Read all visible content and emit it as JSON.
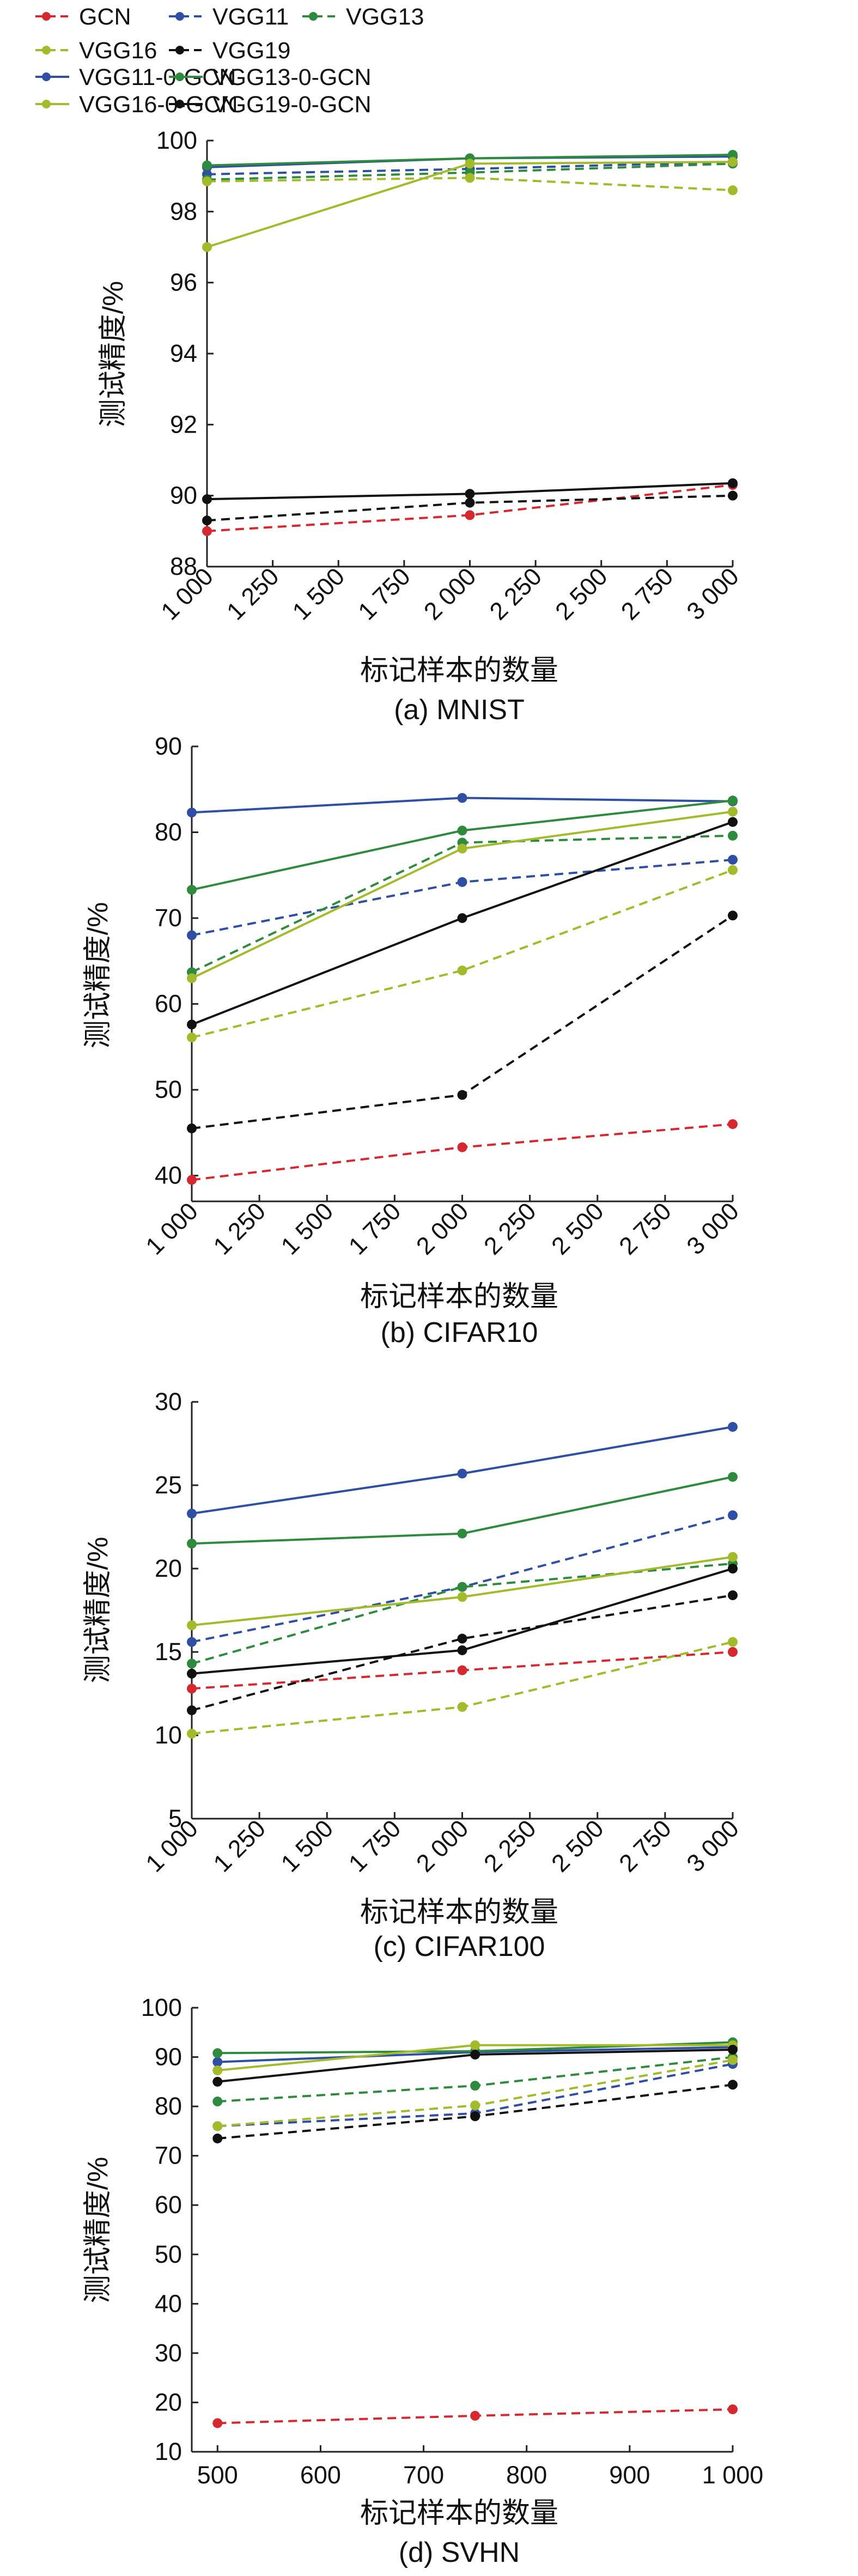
{
  "legend": {
    "items": [
      {
        "key": "gcn",
        "label": "GCN",
        "color": "#d7282f",
        "dashed": true
      },
      {
        "key": "vgg11",
        "label": "VGG11",
        "color": "#2e4fa3",
        "dashed": true
      },
      {
        "key": "vgg13",
        "label": "VGG13",
        "color": "#2e8b3e",
        "dashed": true
      },
      {
        "key": "vgg16",
        "label": "VGG16",
        "color": "#a3bb2b",
        "dashed": true
      },
      {
        "key": "vgg19",
        "label": "VGG19",
        "color": "#111111",
        "dashed": true
      },
      {
        "key": "vgg11_0_gcn",
        "label": "VGG11-0-GCN",
        "color": "#2e4fa3",
        "dashed": false
      },
      {
        "key": "vgg13_0_gcn",
        "label": "VGG13-0-GCN",
        "color": "#2e8b3e",
        "dashed": false
      },
      {
        "key": "vgg16_0_gcn",
        "label": "VGG16-0-GCN",
        "color": "#a3bb2b",
        "dashed": false
      },
      {
        "key": "vgg19_0_gcn",
        "label": "VGG19-0-GCN",
        "color": "#111111",
        "dashed": false
      }
    ]
  },
  "chart_data": [
    {
      "type": "line",
      "title": "(a) MNIST",
      "xlabel": "标记样本的数量",
      "ylabel": "测试精度/%",
      "x": [
        1000,
        2000,
        3000
      ],
      "xlim": [
        1000,
        3000
      ],
      "ylim": [
        88,
        100
      ],
      "xticks": [
        "1 000",
        "1 250",
        "1 500",
        "1 750",
        "2 000",
        "2 250",
        "2 500",
        "2 750",
        "3 000"
      ],
      "yticks": [
        "88",
        "90",
        "92",
        "94",
        "96",
        "98",
        "100"
      ],
      "series": [
        {
          "name": "GCN",
          "values": [
            89.0,
            89.45,
            90.3
          ]
        },
        {
          "name": "VGG11",
          "values": [
            99.05,
            99.2,
            99.4
          ]
        },
        {
          "name": "VGG13",
          "values": [
            98.9,
            99.1,
            99.35
          ]
        },
        {
          "name": "VGG16",
          "values": [
            98.85,
            98.95,
            98.6
          ]
        },
        {
          "name": "VGG19",
          "values": [
            89.3,
            89.8,
            90.0
          ]
        },
        {
          "name": "VGG11-0-GCN",
          "values": [
            99.25,
            99.5,
            99.55
          ]
        },
        {
          "name": "VGG13-0-GCN",
          "values": [
            99.3,
            99.5,
            99.6
          ]
        },
        {
          "name": "VGG16-0-GCN",
          "values": [
            97.0,
            99.35,
            99.4
          ]
        },
        {
          "name": "VGG19-0-GCN",
          "values": [
            89.9,
            90.05,
            90.35
          ]
        }
      ]
    },
    {
      "type": "line",
      "title": "(b) CIFAR10",
      "xlabel": "标记样本的数量",
      "ylabel": "测试精度/%",
      "x": [
        1000,
        2000,
        3000
      ],
      "xlim": [
        1000,
        3000
      ],
      "ylim": [
        37,
        90
      ],
      "xticks": [
        "1 000",
        "1 250",
        "1 500",
        "1 750",
        "2 000",
        "2 250",
        "2 500",
        "2 750",
        "3 000"
      ],
      "yticks": [
        "40",
        "50",
        "60",
        "70",
        "80",
        "90"
      ],
      "series": [
        {
          "name": "GCN",
          "values": [
            39.5,
            43.3,
            46.0
          ]
        },
        {
          "name": "VGG11",
          "values": [
            68.0,
            74.2,
            76.8
          ]
        },
        {
          "name": "VGG13",
          "values": [
            63.7,
            78.8,
            79.6
          ]
        },
        {
          "name": "VGG16",
          "values": [
            56.1,
            63.9,
            75.6
          ]
        },
        {
          "name": "VGG19",
          "values": [
            45.5,
            49.4,
            70.3
          ]
        },
        {
          "name": "VGG11-0-GCN",
          "values": [
            82.3,
            84.0,
            83.6
          ]
        },
        {
          "name": "VGG13-0-GCN",
          "values": [
            73.3,
            80.2,
            83.7
          ]
        },
        {
          "name": "VGG16-0-GCN",
          "values": [
            63.0,
            78.1,
            82.4
          ]
        },
        {
          "name": "VGG19-0-GCN",
          "values": [
            57.6,
            70.0,
            81.2
          ]
        }
      ]
    },
    {
      "type": "line",
      "title": "(c) CIFAR100",
      "xlabel": "标记样本的数量",
      "ylabel": "测试精度/%",
      "x": [
        1000,
        2000,
        3000
      ],
      "xlim": [
        1000,
        3000
      ],
      "ylim": [
        5,
        30
      ],
      "xticks": [
        "1 000",
        "1 250",
        "1 500",
        "1 750",
        "2 000",
        "2 250",
        "2 500",
        "2 750",
        "3 000"
      ],
      "yticks": [
        "5",
        "10",
        "15",
        "20",
        "25",
        "30"
      ],
      "series": [
        {
          "name": "GCN",
          "values": [
            12.8,
            13.9,
            15.0
          ]
        },
        {
          "name": "VGG11",
          "values": [
            15.6,
            18.9,
            23.2
          ]
        },
        {
          "name": "VGG13",
          "values": [
            14.3,
            18.9,
            20.3
          ]
        },
        {
          "name": "VGG16",
          "values": [
            10.1,
            11.7,
            15.6
          ]
        },
        {
          "name": "VGG19",
          "values": [
            11.5,
            15.8,
            18.4
          ]
        },
        {
          "name": "VGG11-0-GCN",
          "values": [
            23.3,
            25.7,
            28.5
          ]
        },
        {
          "name": "VGG13-0-GCN",
          "values": [
            21.5,
            22.1,
            25.5
          ]
        },
        {
          "name": "VGG16-0-GCN",
          "values": [
            16.6,
            18.3,
            20.7
          ]
        },
        {
          "name": "VGG19-0-GCN",
          "values": [
            13.7,
            15.1,
            20.0
          ]
        }
      ]
    },
    {
      "type": "line",
      "title": "(d) SVHN",
      "xlabel": "标记样本的数量",
      "ylabel": "测试精度/%",
      "x": [
        500,
        750,
        1000
      ],
      "xlim": [
        475,
        1000
      ],
      "ylim": [
        10,
        100
      ],
      "xticks": [
        "500",
        "600",
        "700",
        "800",
        "900",
        "1 000"
      ],
      "xtick_values": [
        500,
        600,
        700,
        800,
        900,
        1000
      ],
      "yticks": [
        "10",
        "20",
        "30",
        "40",
        "50",
        "60",
        "70",
        "80",
        "90",
        "100"
      ],
      "series": [
        {
          "name": "GCN",
          "values": [
            15.8,
            17.3,
            18.6
          ]
        },
        {
          "name": "VGG11",
          "values": [
            76.0,
            78.6,
            88.6
          ]
        },
        {
          "name": "VGG13",
          "values": [
            81.0,
            84.2,
            90.0
          ]
        },
        {
          "name": "VGG16",
          "values": [
            76.0,
            80.2,
            89.4
          ]
        },
        {
          "name": "VGG19",
          "values": [
            73.5,
            78.0,
            84.4
          ]
        },
        {
          "name": "VGG11-0-GCN",
          "values": [
            89.0,
            91.0,
            92.0
          ]
        },
        {
          "name": "VGG13-0-GCN",
          "values": [
            90.8,
            91.2,
            93.0
          ]
        },
        {
          "name": "VGG16-0-GCN",
          "values": [
            87.3,
            92.4,
            92.4
          ]
        },
        {
          "name": "VGG19-0-GCN",
          "values": [
            85.0,
            90.5,
            91.5
          ]
        }
      ]
    }
  ]
}
